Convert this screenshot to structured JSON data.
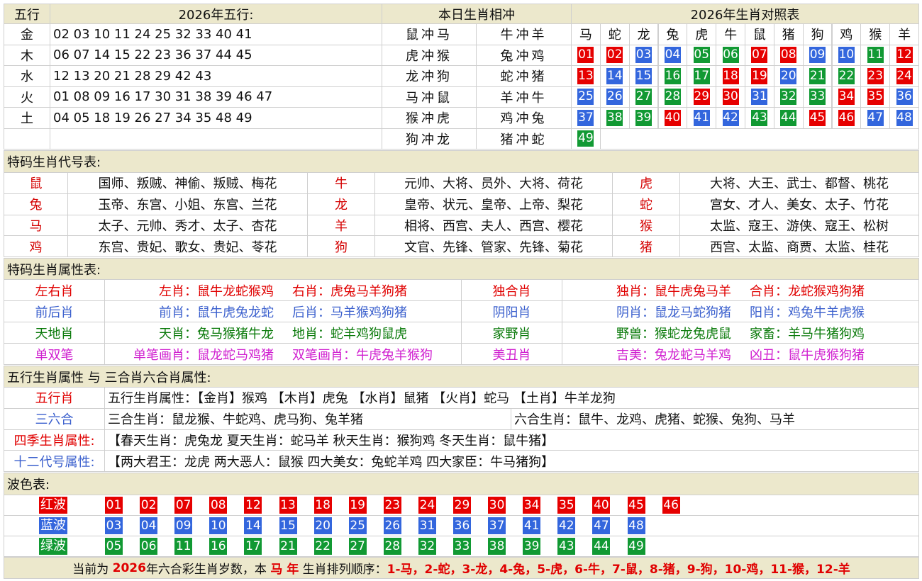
{
  "wuxing": {
    "headers": [
      "五行",
      "2026年五行:",
      "本日生肖相冲",
      "2026年生肖对照表"
    ],
    "rows": [
      {
        "element": "金",
        "numbers": "02 03 10 11 24 25 32 33 40 41"
      },
      {
        "element": "木",
        "numbers": "06 07 14 15 22 23 36 37 44 45"
      },
      {
        "element": "水",
        "numbers": "12 13 20 21 28 29 42 43"
      },
      {
        "element": "火",
        "numbers": "01 08 09 16 17 30 31 38 39 46 47"
      },
      {
        "element": "土",
        "numbers": "04 05 18 19 26 27 34 35 48 49"
      }
    ]
  },
  "conflicts": [
    [
      "鼠冲马",
      "牛冲羊"
    ],
    [
      "虎冲猴",
      "兔冲鸡"
    ],
    [
      "龙冲狗",
      "蛇冲猪"
    ],
    [
      "马冲鼠",
      "羊冲牛"
    ],
    [
      "猴冲虎",
      "鸡冲兔"
    ],
    [
      "狗冲龙",
      "猪冲蛇"
    ]
  ],
  "zodiac_table": {
    "zodiacs": [
      "马",
      "蛇",
      "龙",
      "兔",
      "虎",
      "牛",
      "鼠",
      "猪",
      "狗",
      "鸡",
      "猴",
      "羊"
    ],
    "numbers": [
      "01",
      "02",
      "03",
      "04",
      "05",
      "06",
      "07",
      "08",
      "09",
      "10",
      "11",
      "12",
      "13",
      "14",
      "15",
      "16",
      "17",
      "18",
      "19",
      "20",
      "21",
      "22",
      "23",
      "24",
      "25",
      "26",
      "27",
      "28",
      "29",
      "30",
      "31",
      "32",
      "33",
      "34",
      "35",
      "36",
      "37",
      "38",
      "39",
      "40",
      "41",
      "42",
      "43",
      "44",
      "45",
      "46",
      "47",
      "48",
      "49"
    ]
  },
  "codes": {
    "title": "特码生肖代号表:",
    "rows": [
      [
        {
          "zodiac": "鼠",
          "names": "国师、叛贼、神偷、叛贼、梅花"
        },
        {
          "zodiac": "牛",
          "names": "元帅、大将、员外、大将、荷花"
        },
        {
          "zodiac": "虎",
          "names": "大将、大王、武士、都督、桃花"
        }
      ],
      [
        {
          "zodiac": "兔",
          "names": "玉帝、东宫、小姐、东宫、兰花"
        },
        {
          "zodiac": "龙",
          "names": "皇帝、状元、皇帝、上帝、梨花"
        },
        {
          "zodiac": "蛇",
          "names": "宫女、才人、美女、太子、竹花"
        }
      ],
      [
        {
          "zodiac": "马",
          "names": "太子、元帅、秀才、太子、杏花"
        },
        {
          "zodiac": "羊",
          "names": "相将、西宫、夫人、西宫、樱花"
        },
        {
          "zodiac": "猴",
          "names": "太监、寇王、游侠、寇王、松树"
        }
      ],
      [
        {
          "zodiac": "鸡",
          "names": "东宫、贵妃、歌女、贵妃、苓花"
        },
        {
          "zodiac": "狗",
          "names": "文官、先锋、管家、先锋、菊花"
        },
        {
          "zodiac": "猪",
          "names": "西宫、太监、商贾、太监、桂花"
        }
      ]
    ]
  },
  "attributes": {
    "title": "特码生肖属性表:",
    "rows": [
      {
        "color": "#e00000",
        "groups": [
          {
            "label": "左右肖",
            "items": [
              "左肖：鼠牛龙蛇猴鸡",
              "右肖：虎兔马羊狗猪"
            ]
          },
          {
            "label": "独合肖",
            "items": [
              "独肖：鼠牛虎兔马羊",
              "合肖：龙蛇猴鸡狗猪"
            ]
          }
        ]
      },
      {
        "color": "#3a5fcd",
        "groups": [
          {
            "label": "前后肖",
            "items": [
              "前肖：鼠牛虎兔龙蛇",
              "后肖：马羊猴鸡狗猪"
            ]
          },
          {
            "label": "阴阳肖",
            "items": [
              "阴肖：鼠龙马蛇狗猪",
              "阳肖：鸡兔牛羊虎猴"
            ]
          }
        ]
      },
      {
        "color": "#0a7a0a",
        "groups": [
          {
            "label": "天地肖",
            "items": [
              "天肖：兔马猴猪牛龙",
              "地肖：蛇羊鸡狗鼠虎"
            ]
          },
          {
            "label": "家野肖",
            "items": [
              "野兽：猴蛇龙兔虎鼠",
              "家畜：羊马牛猪狗鸡"
            ]
          }
        ]
      },
      {
        "color": "#d020d0",
        "groups": [
          {
            "label": "单双笔",
            "items": [
              "单笔画肖：鼠龙蛇马鸡猪",
              "双笔画肖：牛虎兔羊猴狗"
            ]
          },
          {
            "label": "美丑肖",
            "items": [
              "吉美：兔龙蛇马羊鸡",
              "凶丑：鼠牛虎猴狗猪"
            ]
          }
        ]
      }
    ]
  },
  "elements": {
    "title": "五行生肖属性 与 三合肖六合肖属性:",
    "rows": [
      {
        "label": "五行肖",
        "color": "#e00000",
        "cells": [
          "五行生肖属性：【金肖】猴鸡 【木肖】虎兔 【水肖】鼠猪 【火肖】蛇马 【土肖】牛羊龙狗"
        ]
      },
      {
        "label": "三六合",
        "color": "#3a5fcd",
        "cells": [
          "三合生肖：鼠龙猴、牛蛇鸡、虎马狗、兔羊猪",
          "六合生肖：鼠牛、龙鸡、虎猪、蛇猴、兔狗、马羊"
        ]
      },
      {
        "label": "四季生肖属性:",
        "color": "#e00000",
        "cells": [
          "【春天生肖：虎兔龙 夏天生肖：蛇马羊 秋天生肖：猴狗鸡 冬天生肖：鼠牛猪】"
        ]
      },
      {
        "label": "十二代号属性:",
        "color": "#3a5fcd",
        "cells": [
          "【两大君王：龙虎 两大恶人：鼠猴 四大美女：兔蛇羊鸡 四大家臣：牛马猪狗】"
        ]
      }
    ]
  },
  "waves": {
    "title": "波色表:",
    "series": [
      {
        "name": "红波",
        "color": "#e60000",
        "numbers": [
          "01",
          "02",
          "07",
          "08",
          "12",
          "13",
          "18",
          "19",
          "23",
          "24",
          "29",
          "30",
          "34",
          "35",
          "40",
          "45",
          "46"
        ]
      },
      {
        "name": "蓝波",
        "color": "#3366dd",
        "numbers": [
          "03",
          "04",
          "09",
          "10",
          "14",
          "15",
          "20",
          "25",
          "26",
          "31",
          "36",
          "37",
          "41",
          "42",
          "47",
          "48"
        ]
      },
      {
        "name": "绿波",
        "color": "#119933",
        "numbers": [
          "05",
          "06",
          "11",
          "16",
          "17",
          "21",
          "22",
          "27",
          "28",
          "32",
          "33",
          "38",
          "39",
          "43",
          "44",
          "49"
        ]
      }
    ]
  },
  "footer": [
    {
      "text": "当前为 ",
      "emphasis": false
    },
    {
      "text": "2026",
      "emphasis": true
    },
    {
      "text": "年六合彩生肖岁数，本 ",
      "emphasis": false
    },
    {
      "text": "马 年",
      "emphasis": true
    },
    {
      "text": " 生肖排列顺序：",
      "emphasis": false
    },
    {
      "text": "1-马，2-蛇，3-龙，4-兔，5-虎，6-牛，7-鼠，8-猪，9-狗，10-鸡，11-猴，12-羊",
      "emphasis": true
    }
  ]
}
